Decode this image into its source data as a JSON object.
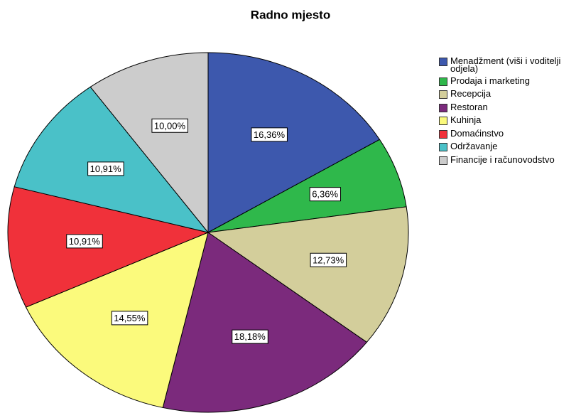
{
  "chart_data": {
    "type": "pie",
    "title": "Radno mjesto",
    "categories": [
      "Menadžment (viši i voditelji odjela)",
      "Prodaja i marketing",
      "Recepcija",
      "Restoran",
      "Kuhinja",
      "Domaćinstvo",
      "Održavanje",
      "Financije i računovodstvo"
    ],
    "values": [
      16.36,
      6.36,
      12.73,
      18.18,
      14.55,
      10.91,
      10.91,
      10.0
    ],
    "value_labels": [
      "16,36%",
      "6,36%",
      "12,73%",
      "18,18%",
      "14,55%",
      "10,91%",
      "10,91%",
      "10,00%"
    ],
    "colors": [
      "#3d58ad",
      "#2fb84b",
      "#d3ce9b",
      "#7b2a7c",
      "#fbfa7c",
      "#f0313a",
      "#4ac1c8",
      "#cccccc"
    ],
    "legend": "right"
  }
}
